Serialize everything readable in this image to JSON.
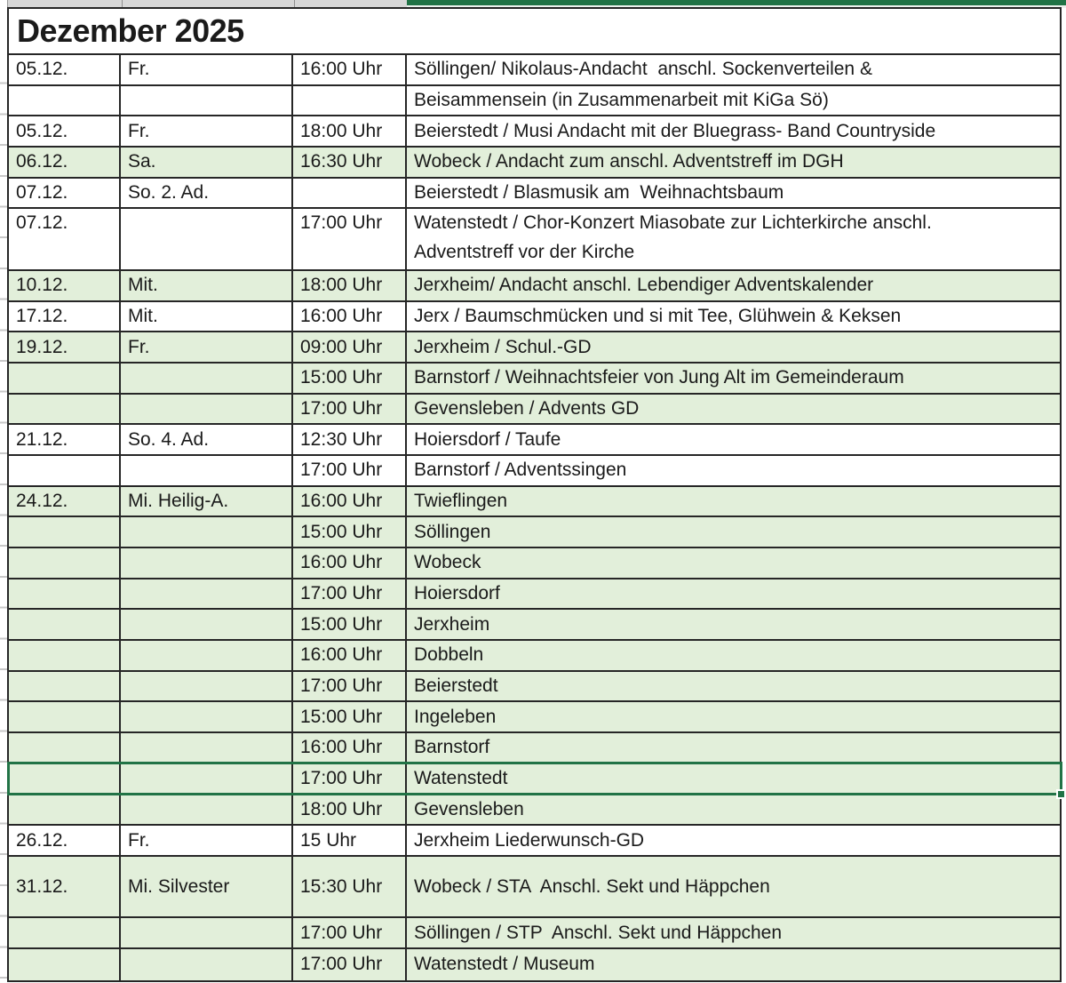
{
  "sheet": {
    "title": "Dezember 2025"
  },
  "colors": {
    "accent_green": "#217346",
    "row_green": "#e2efda",
    "grid_border": "#262626",
    "top_strip_gray": "#d7d7d7"
  },
  "table": {
    "columns": [
      "date",
      "day",
      "time",
      "event"
    ],
    "rows": [
      {
        "date": "05.12.",
        "day": "Fr.",
        "time": "16:00 Uhr",
        "event": "Söllingen/ Nikolaus-Andacht  anschl. Sockenverteilen &",
        "bg": "white"
      },
      {
        "date": "",
        "day": "",
        "time": "",
        "event": "Beisammensein (in Zusammenarbeit mit KiGa Sö)",
        "bg": "white"
      },
      {
        "date": "05.12.",
        "day": "Fr.",
        "time": "18:00 Uhr",
        "event": "Beierstedt / Musi Andacht mit der Bluegrass- Band Countryside",
        "bg": "white"
      },
      {
        "date": "06.12.",
        "day": "Sa.",
        "time": "16:30 Uhr",
        "event": "Wobeck / Andacht zum anschl. Adventstreff im DGH",
        "bg": "green"
      },
      {
        "date": "07.12.",
        "day": "So. 2. Ad.",
        "time": "",
        "event": "Beierstedt / Blasmusik am  Weihnachtsbaum",
        "bg": "white"
      },
      {
        "date": "07.12.",
        "day": "",
        "time": "17:00 Uhr",
        "event": "Watenstedt / Chor-Konzert Miasobate zur Lichterkirche anschl.\nAdventstreff vor der Kirche",
        "bg": "white",
        "h": "double",
        "valign": "top"
      },
      {
        "date": "10.12.",
        "day": "Mit.",
        "time": "18:00 Uhr",
        "event": "Jerxheim/ Andacht anschl. Lebendiger Adventskalender",
        "bg": "green"
      },
      {
        "date": "17.12.",
        "day": "Mit.",
        "time": "16:00 Uhr",
        "event": "Jerx / Baumschmücken und si mit Tee, Glühwein & Keksen",
        "bg": "white"
      },
      {
        "date": "19.12.",
        "day": "Fr.",
        "time": "09:00 Uhr",
        "event": "Jerxheim / Schul.-GD",
        "bg": "green"
      },
      {
        "date": "",
        "day": "",
        "time": "15:00 Uhr",
        "event": "Barnstorf / Weihnachtsfeier von Jung Alt im Gemeinderaum",
        "bg": "green"
      },
      {
        "date": "",
        "day": "",
        "time": "17:00 Uhr",
        "event": "Gevensleben / Advents GD",
        "bg": "green"
      },
      {
        "date": "21.12.",
        "day": "So. 4. Ad.",
        "time": "12:30 Uhr",
        "event": "Hoiersdorf / Taufe",
        "bg": "white"
      },
      {
        "date": "",
        "day": "",
        "time": "17:00 Uhr",
        "event": "Barnstorf / Adventssingen",
        "bg": "white"
      },
      {
        "date": "24.12.",
        "day": "Mi. Heilig-A.",
        "time": "16:00 Uhr",
        "event": "Twieflingen",
        "bg": "green"
      },
      {
        "date": "",
        "day": "",
        "time": "15:00 Uhr",
        "event": "Söllingen",
        "bg": "green"
      },
      {
        "date": "",
        "day": "",
        "time": "16:00 Uhr",
        "event": "Wobeck",
        "bg": "green"
      },
      {
        "date": "",
        "day": "",
        "time": "17:00 Uhr",
        "event": "Hoiersdorf",
        "bg": "green"
      },
      {
        "date": "",
        "day": "",
        "time": "15:00 Uhr",
        "event": "Jerxheim",
        "bg": "green"
      },
      {
        "date": "",
        "day": "",
        "time": "16:00 Uhr",
        "event": "Dobbeln",
        "bg": "green"
      },
      {
        "date": "",
        "day": "",
        "time": "17:00 Uhr",
        "event": "Beierstedt",
        "bg": "green"
      },
      {
        "date": "",
        "day": "",
        "time": "15:00 Uhr",
        "event": "Ingeleben",
        "bg": "green"
      },
      {
        "date": "",
        "day": "",
        "time": "16:00 Uhr",
        "event": "Barnstorf",
        "bg": "green"
      },
      {
        "date": "",
        "day": "",
        "time": "17:00 Uhr",
        "event": "Watenstedt",
        "bg": "green",
        "selected": true
      },
      {
        "date": "",
        "day": "",
        "time": "18:00 Uhr",
        "event": "Gevensleben",
        "bg": "green"
      },
      {
        "date": "26.12.",
        "day": "Fr.",
        "time": "15 Uhr",
        "event": "Jerxheim Liederwunsch-GD",
        "bg": "white"
      },
      {
        "date": "31.12.",
        "day": "Mi. Silvester",
        "time": "15:30 Uhr",
        "event": "Wobeck / STA  Anschl. Sekt und Häppchen",
        "bg": "green",
        "h": "double"
      },
      {
        "date": "",
        "day": "",
        "time": "17:00 Uhr",
        "event": "Söllingen / STP  Anschl. Sekt und Häppchen",
        "bg": "green"
      },
      {
        "date": "",
        "day": "",
        "time": "17:00 Uhr",
        "event": "Watenstedt / Museum",
        "bg": "green"
      }
    ]
  }
}
